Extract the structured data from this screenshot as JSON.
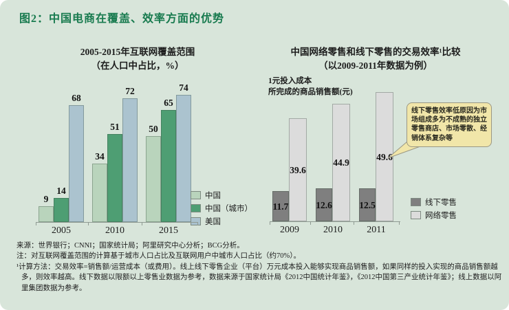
{
  "figure_title": "图2：中国电商在覆盖、效率方面的优势",
  "accent_color": "#177a4e",
  "panel_background": "#d8e5da",
  "chart_data": [
    {
      "type": "bar",
      "title": "2005-2015年互联网覆盖范围",
      "subtitle": "（在人口中占比，%）",
      "categories": [
        "2005",
        "2010",
        "2015"
      ],
      "series": [
        {
          "name": "中国",
          "color": "#b9d4bc",
          "values": [
            9,
            34,
            50
          ]
        },
        {
          "name": "中国（城市）",
          "color": "#4e9e73",
          "values": [
            14,
            51,
            65
          ]
        },
        {
          "name": "美国",
          "color": "#abc3cf",
          "values": [
            68,
            72,
            74
          ]
        }
      ],
      "ylim": [
        0,
        80
      ],
      "value_labels": "above bars",
      "grid": "off",
      "legend_position": "bottom-right"
    },
    {
      "type": "bar",
      "title": "中国网络零售和线下零售的交易效率¹比较",
      "subtitle": "（以2009-2011年数据为例）",
      "ylabel": "1元投入成本 所完成的商品销售额(元)",
      "ylabel_lines": [
        "1元投入成本",
        "所完成的商品销售额(元)"
      ],
      "categories": [
        "2009",
        "2010",
        "2011"
      ],
      "series": [
        {
          "name": "线下零售",
          "color": "#7f7f7f",
          "values": [
            11.7,
            12.6,
            12.5
          ]
        },
        {
          "name": "网络零售",
          "color": "#dcdcdc",
          "values": [
            39.6,
            44.9,
            49.6
          ]
        }
      ],
      "ylim": [
        0,
        55
      ],
      "value_labels": "inside bars, centered",
      "grid": "off",
      "annotation": "线下零售效率低原因为市场组成多为不成熟的独立零售商店、市场零散、经销体系复杂等",
      "annotation_color": "#f1e6a9",
      "legend_position": "right"
    }
  ],
  "notes": {
    "source": "来源：世界银行；CNNI；国家统计局；阿里研究中心分析；BCG分析。",
    "note": "注：对互联网覆盖范围的计算基于城市人口占比及互联网用户中城市人口占比（约70%）。",
    "footnote": "¹计算方法：交易效率=销售额/运营成本（或费用）。线上线下零售企业（平台）万元成本投入能够实现商品销售额，如果同样的投入实现的商品销售额越多，则效率越高。线下数据以限额以上零售业数据为参考，数据来源于国家统计局《2012中国统计年鉴》，《2012中国第三产业统计年鉴》；线上数据以阿里集团数据为参考。"
  }
}
